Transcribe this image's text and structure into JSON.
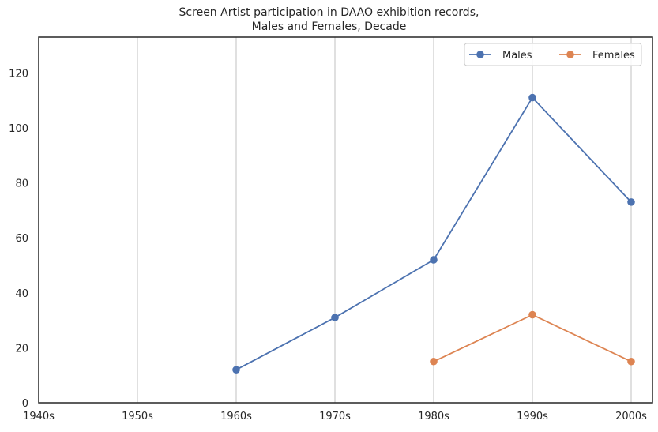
{
  "chart_data": {
    "type": "line",
    "title_line1": "Screen Artist participation in DAAO exhibition records,",
    "title_line2": "Males and Females, Decade",
    "xlabel": "",
    "ylabel": "",
    "categories": [
      "1940s",
      "1950s",
      "1960s",
      "1970s",
      "1980s",
      "1990s",
      "2000s"
    ],
    "y_ticks": [
      0,
      20,
      40,
      60,
      80,
      100,
      120
    ],
    "ylim": [
      0,
      133
    ],
    "grid": "vertical only",
    "legend_position": "top-right",
    "series": [
      {
        "name": "Males",
        "color": "#4c72b0",
        "values": [
          null,
          null,
          12,
          31,
          52,
          111,
          73
        ]
      },
      {
        "name": "Females",
        "color": "#dd8452",
        "values": [
          null,
          null,
          null,
          null,
          15,
          32,
          15
        ]
      }
    ]
  }
}
